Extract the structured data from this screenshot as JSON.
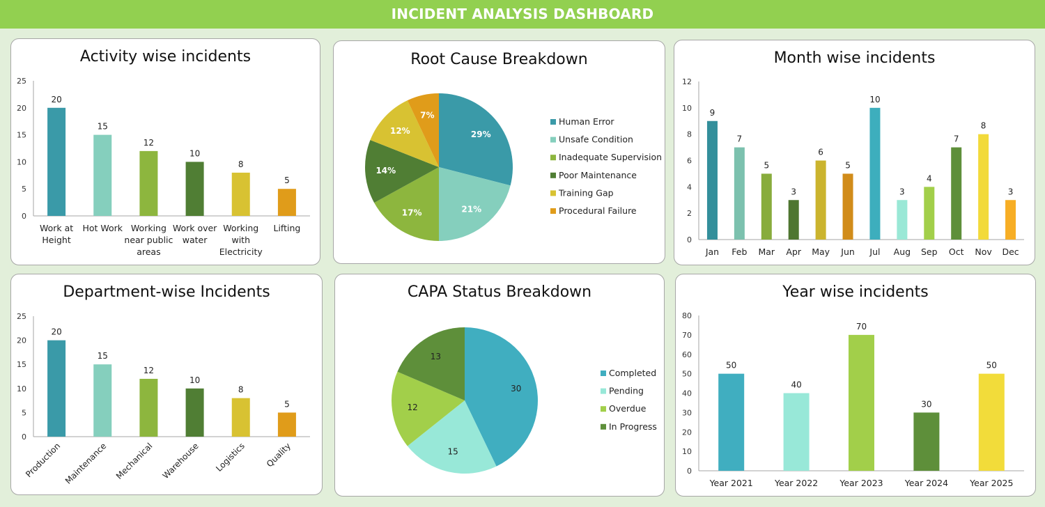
{
  "header": {
    "title": "INCIDENT ANALYSIS DASHBOARD"
  },
  "chart_data": [
    {
      "id": "activity",
      "type": "bar",
      "title": "Activity wise incidents",
      "categories": [
        "Work at Height",
        "Hot Work",
        "Working near public areas",
        "Work over water",
        "Working with Electricity",
        "Lifting"
      ],
      "values": [
        20,
        15,
        12,
        10,
        8,
        5
      ],
      "colors": [
        "#3a9aa8",
        "#85cfbd",
        "#8db63e",
        "#507e34",
        "#d8c232",
        "#e09c1a"
      ],
      "ylim": [
        0,
        25
      ],
      "yticks": [
        0,
        5,
        10,
        15,
        20,
        25
      ],
      "data_labels": true,
      "grid": false
    },
    {
      "id": "rootcause",
      "type": "pie",
      "title": "Root Cause Breakdown",
      "labels": [
        "Human Error",
        "Unsafe Condition",
        "Inadequate Supervision",
        "Poor Maintenance",
        "Training Gap",
        "Procedural Failure"
      ],
      "values": [
        29,
        21,
        17,
        14,
        12,
        7
      ],
      "data_labels": [
        "29%",
        "21%",
        "17%",
        "14%",
        "12%",
        "7%"
      ],
      "colors": [
        "#3a9aa8",
        "#85cfbd",
        "#8db63e",
        "#507e34",
        "#d8c232",
        "#e09c1a"
      ],
      "legend": "right"
    },
    {
      "id": "month",
      "type": "bar",
      "title": "Month wise incidents",
      "categories": [
        "Jan",
        "Feb",
        "Mar",
        "Apr",
        "May",
        "Jun",
        "Jul",
        "Aug",
        "Sep",
        "Oct",
        "Nov",
        "Dec"
      ],
      "values": [
        9,
        7,
        5,
        3,
        6,
        5,
        10,
        3,
        4,
        7,
        8,
        3
      ],
      "colors": [
        "#338f9b",
        "#7cc1ae",
        "#88ac3c",
        "#4e7630",
        "#cbb42e",
        "#d18c1a",
        "#3daebd",
        "#9ae8d6",
        "#a2cf4a",
        "#5e8f3a",
        "#f2da3a",
        "#f7ae25"
      ],
      "ylim": [
        0,
        12
      ],
      "yticks": [
        0,
        2,
        4,
        6,
        8,
        10,
        12
      ],
      "data_labels": true,
      "grid": false
    },
    {
      "id": "department",
      "type": "bar",
      "title": "Department-wise Incidents",
      "categories": [
        "Production",
        "Maintenance",
        "Mechanical",
        "Warehouse",
        "Logistics",
        "Quality"
      ],
      "values": [
        20,
        15,
        12,
        10,
        8,
        5
      ],
      "colors": [
        "#3a9aa8",
        "#85cfbd",
        "#8db63e",
        "#507e34",
        "#d8c232",
        "#e09c1a"
      ],
      "ylim": [
        0,
        25
      ],
      "yticks": [
        0,
        5,
        10,
        15,
        20,
        25
      ],
      "data_labels": true,
      "grid": false
    },
    {
      "id": "capa",
      "type": "pie",
      "title": "CAPA Status Breakdown",
      "labels": [
        "Completed",
        "Pending",
        "Overdue",
        "In Progress"
      ],
      "values": [
        30,
        15,
        12,
        13
      ],
      "data_labels": [
        "30",
        "15",
        "12",
        "13"
      ],
      "colors": [
        "#40aec0",
        "#98e8d8",
        "#a2cf4a",
        "#5e8f3a"
      ],
      "legend": "right"
    },
    {
      "id": "year",
      "type": "bar",
      "title": "Year wise incidents",
      "categories": [
        "Year 2021",
        "Year 2022",
        "Year 2023",
        "Year 2024",
        "Year 2025"
      ],
      "values": [
        50,
        40,
        70,
        30,
        50
      ],
      "colors": [
        "#40aec0",
        "#98e8d8",
        "#a2cf4a",
        "#5e8f3a",
        "#f2dc3a"
      ],
      "ylim": [
        0,
        80
      ],
      "yticks": [
        0,
        10,
        20,
        30,
        40,
        50,
        60,
        70,
        80
      ],
      "data_labels": true,
      "grid": false
    }
  ]
}
